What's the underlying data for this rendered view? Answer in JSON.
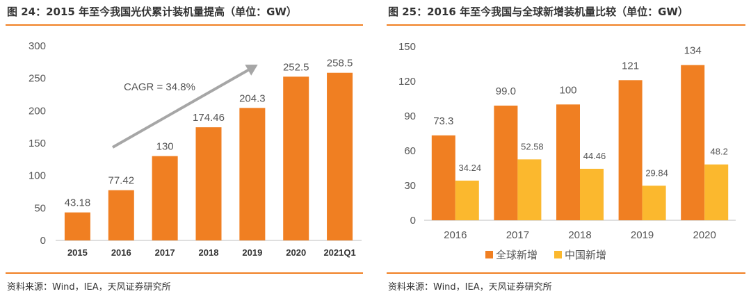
{
  "left": {
    "title": "图 24：2015 年至今我国光伏累计装机量提高（单位：GW）",
    "source": "资料来源：Wind，IEA，天风证券研究所",
    "annotation": "CAGR = 34.8%",
    "colors": {
      "bar": "#f07f22",
      "arrow": "#a6a6a6"
    }
  },
  "right": {
    "title": "图 25：2016 年至今我国与全球新增装机量比较（单位：GW）",
    "source": "资料来源：Wind，IEA，天风证券研究所",
    "colors": {
      "global": "#f07f22",
      "china": "#fbb82e"
    }
  },
  "chart_data": [
    {
      "type": "bar",
      "title": "图 24：2015 年至今我国光伏累计装机量提高（单位：GW）",
      "categories": [
        "2015",
        "2016",
        "2017",
        "2018",
        "2019",
        "2020",
        "2021Q1"
      ],
      "values": [
        43.18,
        77.42,
        130,
        174.46,
        204.3,
        252.5,
        258.5
      ],
      "value_labels": [
        "43.18",
        "77.42",
        "130",
        "174.46",
        "204.3",
        "252.5",
        "258.5"
      ],
      "y_ticks": [
        "0",
        "50",
        "100",
        "150",
        "200",
        "250",
        "300"
      ],
      "ylim": [
        0,
        300
      ],
      "grid": false,
      "annotations": [
        "CAGR = 34.8%"
      ]
    },
    {
      "type": "bar",
      "title": "图 25：2016 年至今我国与全球新增装机量比较（单位：GW）",
      "categories": [
        "2016",
        "2017",
        "2018",
        "2019",
        "2020"
      ],
      "series": [
        {
          "name": "全球新增",
          "values": [
            73.3,
            99.0,
            100,
            121,
            134
          ],
          "labels": [
            "73.3",
            "99.0",
            "100",
            "121",
            "134"
          ]
        },
        {
          "name": "中国新增",
          "values": [
            34.24,
            52.58,
            44.46,
            29.84,
            48.2
          ],
          "labels": [
            "34.24",
            "52.58",
            "44.46",
            "29.84",
            "48.2"
          ]
        }
      ],
      "y_ticks": [
        "0",
        "30",
        "60",
        "90",
        "120",
        "150"
      ],
      "ylim": [
        0,
        150
      ],
      "grid": false,
      "legend": "bottom"
    }
  ]
}
